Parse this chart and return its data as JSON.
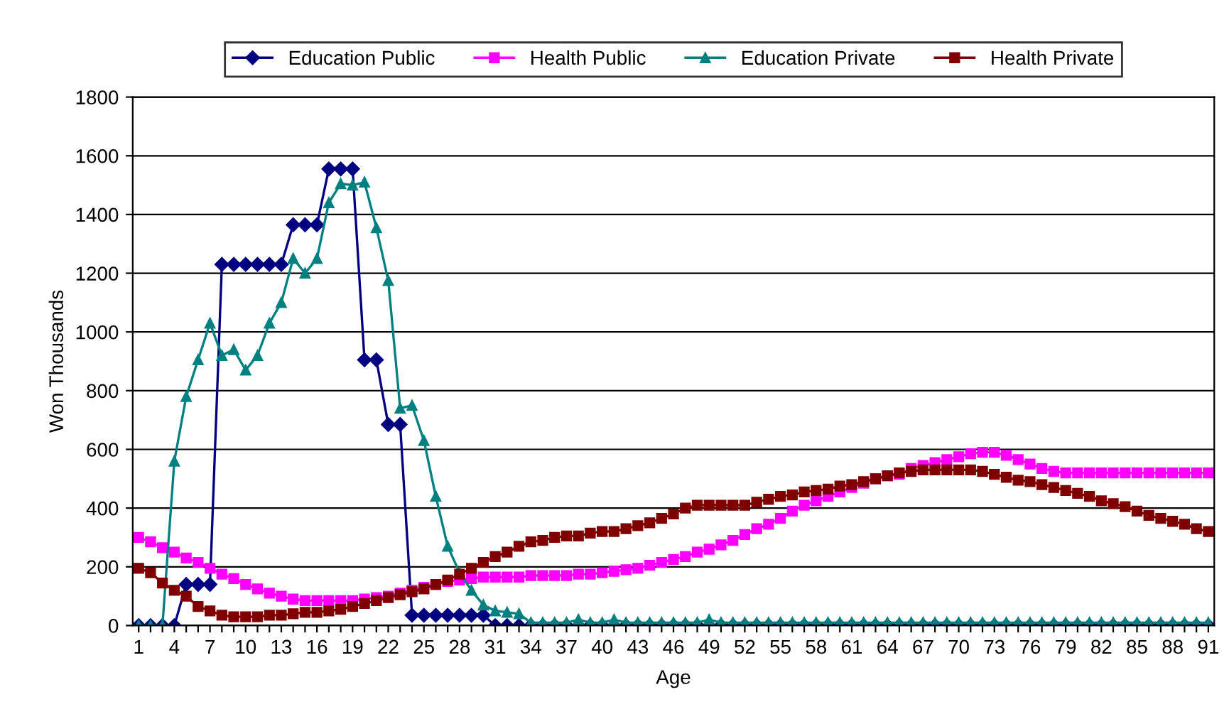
{
  "chart_data": {
    "type": "line",
    "xlabel": "Age",
    "ylabel": "Won Thousands",
    "categories": [
      "1",
      null,
      null,
      "4",
      null,
      null,
      "7",
      null,
      null,
      "10",
      null,
      null,
      "13",
      null,
      null,
      "16",
      null,
      null,
      "19",
      null,
      null,
      "22",
      null,
      null,
      "25",
      null,
      null,
      "28",
      null,
      null,
      "31",
      null,
      null,
      "34",
      null,
      null,
      "37",
      null,
      null,
      "40",
      null,
      null,
      "43",
      null,
      null,
      "46",
      null,
      null,
      "49",
      null,
      null,
      "52",
      null,
      null,
      "55",
      null,
      null,
      "58",
      null,
      null,
      "61",
      null,
      null,
      "64",
      null,
      null,
      "67",
      null,
      null,
      "70",
      null,
      null,
      "73",
      null,
      null,
      "76",
      null,
      null,
      "79",
      null,
      null,
      "82",
      null,
      null,
      "85",
      null,
      null,
      "88",
      null,
      null,
      "91"
    ],
    "ylim": [
      0,
      1800
    ],
    "yticks": [
      0,
      200,
      400,
      600,
      800,
      1000,
      1200,
      1400,
      1600,
      1800
    ],
    "grid": "y",
    "legend": "top",
    "series": [
      {
        "name": "Education Public",
        "color": "#000080",
        "marker": "diamond",
        "values": [
          0,
          0,
          0,
          0,
          140,
          140,
          140,
          1230,
          1230,
          1230,
          1230,
          1230,
          1230,
          1365,
          1365,
          1365,
          1555,
          1555,
          1555,
          905,
          905,
          685,
          685,
          35,
          35,
          35,
          35,
          35,
          35,
          35,
          0,
          0,
          0,
          0,
          0,
          0,
          0,
          0,
          0,
          0,
          0,
          0,
          0,
          0,
          0,
          0,
          0,
          0,
          0,
          0,
          0,
          0,
          0,
          0,
          0,
          0,
          0,
          0,
          0,
          0,
          0,
          0,
          0,
          0,
          0,
          0,
          0,
          0,
          0,
          0,
          0,
          0,
          0,
          0,
          0,
          0,
          0,
          0,
          0,
          0,
          0,
          0,
          0,
          0,
          0,
          0,
          0,
          0,
          0,
          0,
          0
        ]
      },
      {
        "name": "Health Public",
        "color": "#ff00ff",
        "marker": "square",
        "values": [
          300,
          285,
          265,
          250,
          230,
          215,
          195,
          175,
          160,
          140,
          125,
          110,
          100,
          90,
          85,
          85,
          85,
          85,
          85,
          90,
          95,
          100,
          110,
          120,
          130,
          140,
          150,
          155,
          160,
          165,
          165,
          165,
          165,
          170,
          170,
          170,
          170,
          175,
          175,
          180,
          185,
          190,
          195,
          205,
          215,
          225,
          235,
          250,
          260,
          275,
          290,
          310,
          330,
          345,
          365,
          390,
          410,
          425,
          440,
          455,
          470,
          485,
          500,
          510,
          515,
          535,
          545,
          555,
          565,
          575,
          585,
          590,
          590,
          580,
          565,
          550,
          535,
          525,
          520,
          520,
          520,
          520,
          520,
          520,
          520,
          520,
          520,
          520,
          520,
          520,
          520
        ]
      },
      {
        "name": "Education Private",
        "color": "#008080",
        "marker": "triangle",
        "values": [
          0,
          0,
          0,
          560,
          780,
          905,
          1030,
          920,
          940,
          870,
          920,
          1030,
          1100,
          1250,
          1200,
          1250,
          1440,
          1505,
          1500,
          1510,
          1355,
          1175,
          740,
          750,
          630,
          440,
          270,
          180,
          120,
          70,
          50,
          45,
          40,
          10,
          10,
          10,
          10,
          20,
          10,
          10,
          20,
          10,
          10,
          10,
          10,
          10,
          10,
          10,
          20,
          10,
          10,
          10,
          10,
          10,
          10,
          10,
          10,
          10,
          10,
          10,
          10,
          10,
          10,
          10,
          10,
          10,
          10,
          10,
          10,
          10,
          10,
          10,
          10,
          10,
          10,
          10,
          10,
          10,
          10,
          10,
          10,
          10,
          10,
          10,
          10,
          10,
          10,
          10,
          10,
          10,
          10
        ]
      },
      {
        "name": "Health Private",
        "color": "#800000",
        "marker": "square",
        "values": [
          195,
          180,
          145,
          120,
          100,
          65,
          50,
          35,
          30,
          30,
          30,
          35,
          35,
          40,
          45,
          45,
          50,
          55,
          65,
          75,
          85,
          95,
          105,
          115,
          125,
          140,
          155,
          175,
          195,
          215,
          235,
          250,
          270,
          285,
          290,
          300,
          305,
          305,
          315,
          320,
          320,
          330,
          340,
          350,
          365,
          380,
          400,
          410,
          410,
          410,
          410,
          410,
          420,
          430,
          440,
          445,
          455,
          460,
          465,
          475,
          480,
          490,
          500,
          510,
          520,
          525,
          530,
          530,
          530,
          530,
          530,
          525,
          515,
          505,
          495,
          490,
          480,
          470,
          460,
          450,
          440,
          425,
          415,
          405,
          390,
          375,
          365,
          355,
          345,
          330,
          320
        ]
      }
    ]
  }
}
